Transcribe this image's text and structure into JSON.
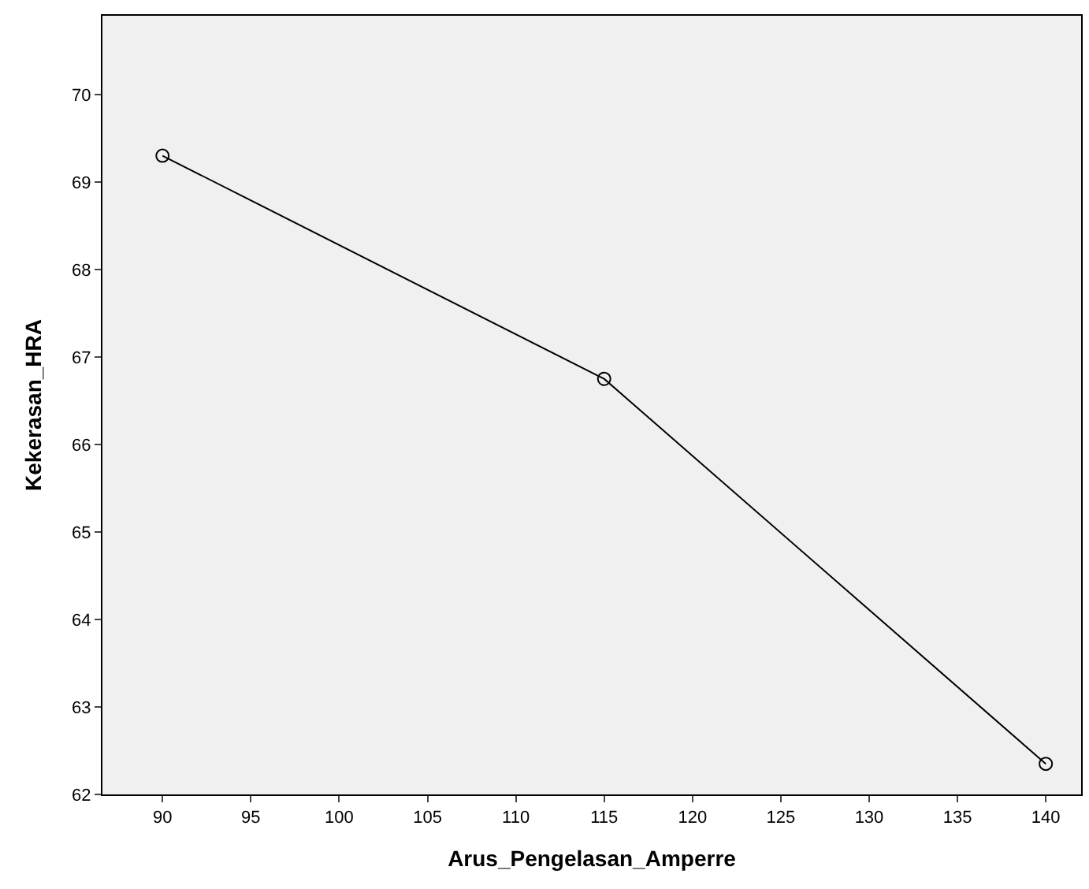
{
  "chart_data": {
    "type": "line",
    "xlabel": "Arus_Pengelasan_Amperre",
    "ylabel": "Kekerasan_HRA",
    "x": [
      90,
      115,
      140
    ],
    "series": [
      {
        "color": "#000000",
        "values": [
          69.3,
          66.75,
          62.35
        ]
      }
    ],
    "xlim": [
      86.6,
      142
    ],
    "xticks": [
      90,
      95,
      100,
      105,
      110,
      115,
      120,
      125,
      130,
      135,
      140
    ],
    "ylim": [
      62,
      70.9
    ],
    "yticks": [
      62,
      63,
      64,
      65,
      66,
      67,
      68,
      69,
      70
    ],
    "grid": false,
    "legend": false,
    "marker": "circle",
    "line_style": "solid"
  }
}
